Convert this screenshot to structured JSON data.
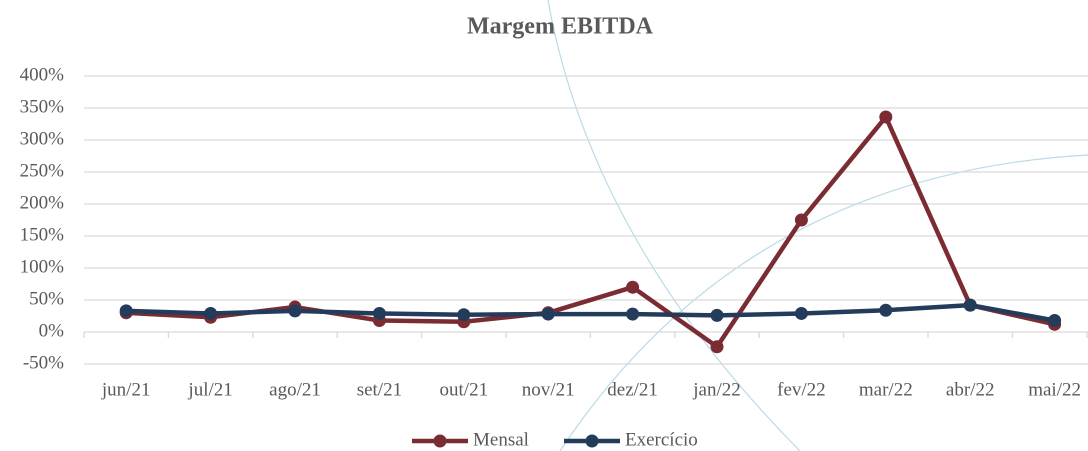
{
  "chart_data": {
    "type": "line",
    "title": "Margem EBITDA",
    "categories": [
      "jun/21",
      "jul/21",
      "ago/21",
      "set/21",
      "out/21",
      "nov/21",
      "dez/21",
      "jan/22",
      "fev/22",
      "mar/22",
      "abr/22",
      "mai/22"
    ],
    "series": [
      {
        "name": "Mensal",
        "color": "#7b2c33",
        "values": [
          30,
          23,
          39,
          18,
          16,
          30,
          70,
          -23,
          175,
          336,
          42,
          12
        ]
      },
      {
        "name": "Exercício",
        "color": "#243c5c",
        "values": [
          33,
          29,
          33,
          29,
          27,
          28,
          28,
          26,
          29,
          34,
          42,
          18
        ]
      }
    ],
    "ylim": [
      -50,
      400
    ],
    "yticks": [
      {
        "value": -50,
        "label": "-50%"
      },
      {
        "value": 0,
        "label": "0%"
      },
      {
        "value": 50,
        "label": "50%"
      },
      {
        "value": 100,
        "label": "100%"
      },
      {
        "value": 150,
        "label": "150%"
      },
      {
        "value": 200,
        "label": "200%"
      },
      {
        "value": 250,
        "label": "250%"
      },
      {
        "value": 300,
        "label": "300%"
      },
      {
        "value": 350,
        "label": "350%"
      },
      {
        "value": 400,
        "label": "400%"
      }
    ],
    "grid": true,
    "legend": "bottom"
  }
}
